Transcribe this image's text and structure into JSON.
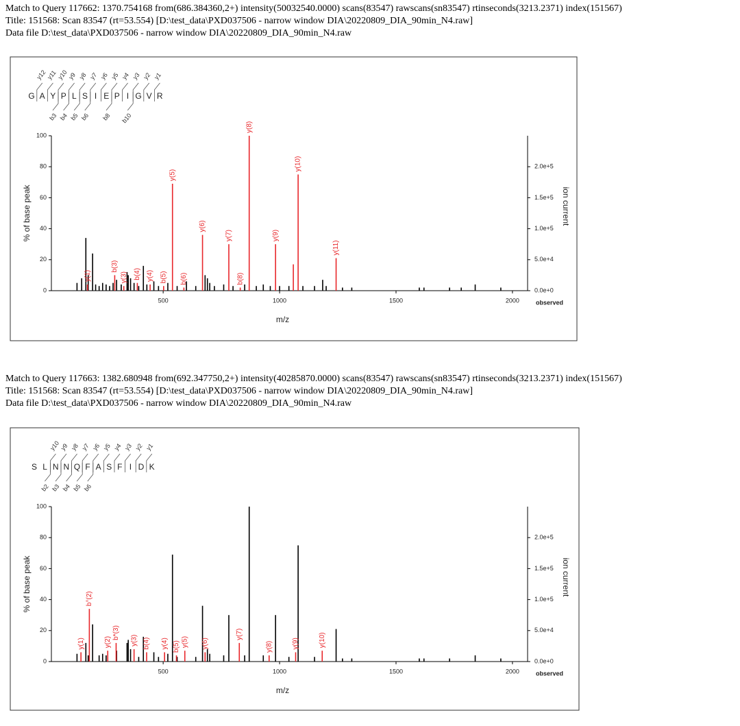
{
  "chart_data": [
    {
      "type": "stem",
      "heading": [
        "Match to Query 117662: 1370.754168 from(686.384360,2+) intensity(50032540.0000) scans(83547) rawscans(sn83547) rtinseconds(3213.2371) index(151567)",
        "Title: 151568: Scan 83547 (rt=53.554) [D:\\test_data\\PXD037506 - narrow window DIA\\20220809_DIA_90min_N4.raw]",
        "Data file D:\\test_data\\PXD037506 - narrow window DIA\\20220809_DIA_90min_N4.raw"
      ],
      "sequence": [
        "G",
        "A",
        "Y",
        "P",
        "L",
        "S",
        "I",
        "E",
        "P",
        "I",
        "G",
        "V",
        "R"
      ],
      "y_ions": [
        "y12",
        "y11",
        "y10",
        "y9",
        "y8",
        "y7",
        "y6",
        "y5",
        "y4",
        "y3",
        "y2",
        "y1"
      ],
      "b_ions": [
        null,
        null,
        "b3",
        "b4",
        "b5",
        "b6",
        null,
        "b8",
        null,
        "b10",
        null,
        null
      ],
      "x_label": "m/z",
      "y_label": "% of base peak",
      "y2_label": "ion current",
      "observed_label": "observed",
      "xlim": [
        20,
        2065
      ],
      "xticks": [
        500,
        1000,
        1500,
        2000
      ],
      "ylim": [
        0,
        100
      ],
      "yticks": [
        0,
        20,
        40,
        60,
        80,
        100
      ],
      "y2lim": [
        0,
        250000
      ],
      "y2ticks": [
        {
          "value": 0,
          "label": "0.0e+0"
        },
        {
          "value": 50000,
          "label": "5.0e+4"
        },
        {
          "value": 100000,
          "label": "1.0e+5"
        },
        {
          "value": 150000,
          "label": "1.5e+5"
        },
        {
          "value": 200000,
          "label": "2.0e+5"
        }
      ],
      "series": [
        {
          "color": "#000000",
          "x": [
            130,
            150,
            168,
            178,
            197,
            210,
            225,
            240,
            255,
            270,
            285,
            300,
            320,
            345,
            350,
            360,
            375,
            395,
            415,
            430,
            460,
            480,
            520,
            560,
            600,
            640,
            680,
            690,
            700,
            720,
            760,
            800,
            850,
            900,
            930,
            960,
            1000,
            1040,
            1100,
            1150,
            1185,
            1200,
            1270,
            1310,
            1600,
            1620,
            1730,
            1780,
            1840,
            1950
          ],
          "values": [
            5,
            8,
            34,
            10,
            24,
            4,
            3,
            5,
            4,
            3,
            5,
            7,
            4,
            12,
            10,
            8,
            5,
            3,
            16,
            4,
            6,
            3,
            5,
            3,
            6,
            3,
            10,
            8,
            5,
            3,
            4,
            3,
            4,
            3,
            4,
            3,
            3,
            3,
            3,
            3,
            7,
            3,
            2,
            2,
            2,
            2,
            2,
            2,
            4,
            2
          ]
        },
        {
          "color": "#e8262a",
          "x": [
            175,
            292,
            331,
            389,
            444,
            502,
            540,
            589,
            669,
            782,
            831,
            869.5,
            982.6,
            1059,
            1079.6,
            1242.7
          ],
          "values": [
            4,
            10,
            3,
            5,
            4,
            3,
            69,
            2,
            36,
            30,
            2,
            100,
            30,
            17,
            75,
            21
          ],
          "labels": [
            "y(1)",
            "b(3)",
            "y(3)",
            "b(4)",
            "y(4)",
            "b(5)",
            "y(5)",
            "b(6)",
            "y(6)",
            "y(7)",
            "b(8)",
            "y(8)",
            "y(9)",
            null,
            "y(10)",
            "y(11)"
          ]
        }
      ]
    },
    {
      "type": "stem",
      "heading": [
        "Match to Query 117663: 1382.680948 from(692.347750,2+) intensity(40285870.0000) scans(83547) rawscans(sn83547) rtinseconds(3213.2371) index(151567)",
        "Title: 151568: Scan 83547 (rt=53.554) [D:\\test_data\\PXD037506 - narrow window DIA\\20220809_DIA_90min_N4.raw]",
        "Data file D:\\test_data\\PXD037506 - narrow window DIA\\20220809_DIA_90min_N4.raw"
      ],
      "sequence": [
        "S",
        "L",
        "N",
        "N",
        "Q",
        "F",
        "A",
        "S",
        "F",
        "I",
        "D",
        "K"
      ],
      "y_ions": [
        null,
        "y10",
        "y9",
        "y8",
        "y7",
        "y6",
        "y5",
        "y4",
        "y3",
        "y2",
        "y1"
      ],
      "b_ions": [
        null,
        "b2",
        "b3",
        "b4",
        "b5",
        "b6",
        null,
        null,
        null,
        null,
        null
      ],
      "x_label": "m/z",
      "y_label": "% of base peak",
      "y2_label": "ion current",
      "observed_label": "observed",
      "xlim": [
        20,
        2065
      ],
      "xticks": [
        500,
        1000,
        1500,
        2000
      ],
      "ylim": [
        0,
        100
      ],
      "yticks": [
        0,
        20,
        40,
        60,
        80,
        100
      ],
      "y2lim": [
        0,
        250000
      ],
      "y2ticks": [
        {
          "value": 0,
          "label": "0.0e+0"
        },
        {
          "value": 50000,
          "label": "5.0e+4"
        },
        {
          "value": 100000,
          "label": "1.0e+5"
        },
        {
          "value": 150000,
          "label": "1.5e+5"
        },
        {
          "value": 200000,
          "label": "2.0e+5"
        }
      ],
      "series": [
        {
          "color": "#000000",
          "x": [
            130,
            168,
            178,
            197,
            225,
            240,
            255,
            300,
            345,
            350,
            360,
            395,
            415,
            460,
            480,
            520,
            540,
            560,
            640,
            669,
            690,
            700,
            760,
            782,
            850,
            869.5,
            930,
            982.6,
            1040,
            1079.6,
            1150,
            1242.7,
            1270,
            1310,
            1600,
            1620,
            1730,
            1840,
            1950
          ],
          "values": [
            5,
            12,
            4,
            24,
            4,
            5,
            4,
            7,
            12,
            14,
            8,
            3,
            16,
            6,
            3,
            5,
            69,
            3,
            3,
            36,
            8,
            5,
            4,
            30,
            4,
            100,
            4,
            30,
            3,
            75,
            3,
            21,
            2,
            2,
            2,
            2,
            2,
            4,
            2
          ]
        },
        {
          "color": "#e8262a",
          "x": [
            147,
            183,
            262,
            298,
            375,
            429,
            506,
            557,
            593,
            680,
            827,
            955,
            1069,
            1183
          ],
          "values": [
            6,
            34,
            7,
            12,
            8,
            6,
            6,
            4,
            7,
            6,
            12,
            4,
            6,
            7
          ],
          "labels": [
            "y(1)",
            "b°(2)",
            "y(2)",
            "b*(3)",
            "y(3)",
            "b(4)",
            "y(4)",
            "b(5)",
            "y(5)",
            "y(6)",
            "y(7)",
            "y(8)",
            "y(9)",
            "y(10)"
          ]
        }
      ]
    }
  ]
}
